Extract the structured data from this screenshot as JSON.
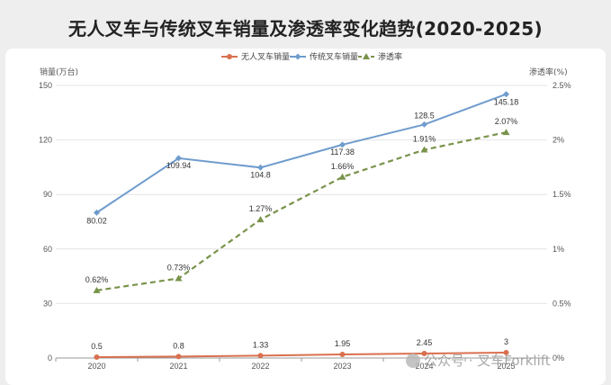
{
  "title": "无人叉车与传统叉车销量及渗透率变化趋势(2020-2025)",
  "watermark": "公众号 · 叉车Forklift",
  "chart_data": {
    "type": "line",
    "categories": [
      "2020",
      "2021",
      "2022",
      "2023",
      "2024",
      "2025"
    ],
    "ylabel_left": "销量(万台)",
    "ylabel_right": "渗透率(%)",
    "ylim_left": [
      0,
      150
    ],
    "yticks_left": [
      0,
      30,
      60,
      90,
      120,
      150
    ],
    "ylim_right": [
      0,
      2.5
    ],
    "yticks_right": [
      "0%",
      "0.5%",
      "1%",
      "1.5%",
      "2%",
      "2.5%"
    ],
    "legend_position": "top-center",
    "grid": true,
    "series": [
      {
        "name": "无人叉车销量",
        "axis": "left",
        "color": "#d9704f",
        "marker": "circle",
        "dashed": false,
        "values": [
          0.5,
          0.8,
          1.33,
          1.95,
          2.45,
          3
        ],
        "labels": [
          "0.5",
          "0.8",
          "1.33",
          "1.95",
          "2.45",
          "3"
        ]
      },
      {
        "name": "传统叉车销量",
        "axis": "left",
        "color": "#6f9ccd",
        "marker": "diamond",
        "dashed": false,
        "values": [
          80.02,
          109.94,
          104.8,
          117.38,
          128.5,
          145.18
        ],
        "labels": [
          "80.02",
          "109.94",
          "104.8",
          "117.38",
          "128.5",
          "145.18"
        ]
      },
      {
        "name": "渗透率",
        "axis": "right",
        "color": "#79934a",
        "marker": "triangle",
        "dashed": true,
        "values": [
          0.62,
          0.73,
          1.27,
          1.66,
          1.91,
          2.07
        ],
        "labels": [
          "0.62%",
          "0.73%",
          "1.27%",
          "1.66%",
          "1.91%",
          "2.07%"
        ]
      }
    ]
  }
}
